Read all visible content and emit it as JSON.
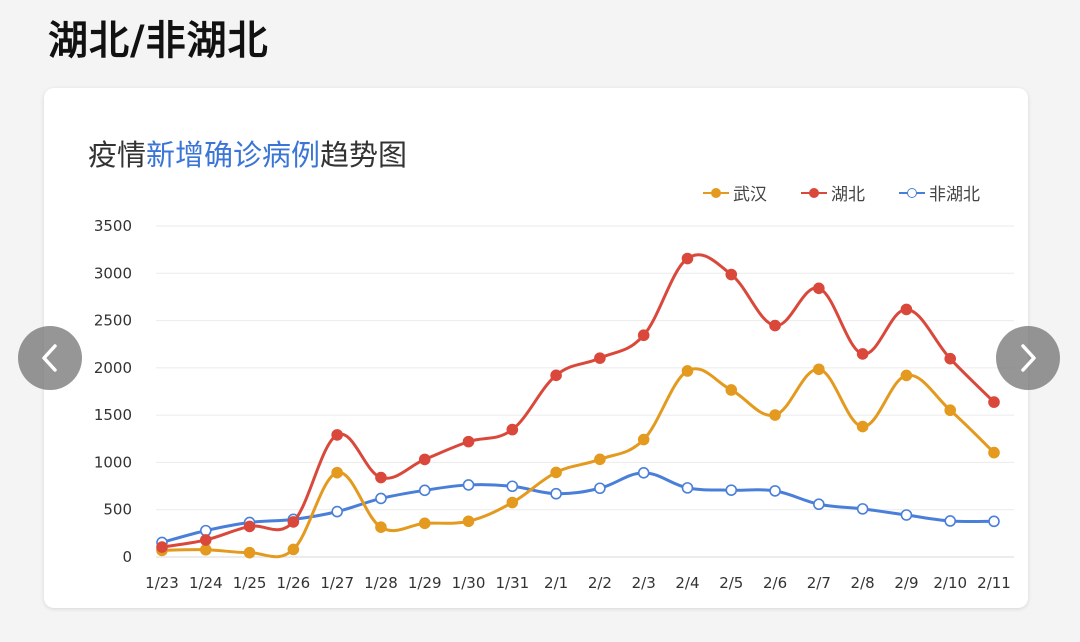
{
  "page": {
    "heading": "湖北/非湖北"
  },
  "chart_data": {
    "type": "line",
    "title_parts": [
      {
        "text": "疫情",
        "highlight": false
      },
      {
        "text": "新增确诊病例",
        "highlight": true
      },
      {
        "text": "趋势图",
        "highlight": false
      }
    ],
    "categories": [
      "1/23",
      "1/24",
      "1/25",
      "1/26",
      "1/27",
      "1/28",
      "1/29",
      "1/30",
      "1/31",
      "2/1",
      "2/2",
      "2/3",
      "2/4",
      "2/5",
      "2/6",
      "2/7",
      "2/8",
      "2/9",
      "2/10",
      "2/11"
    ],
    "ylim": [
      0,
      3500
    ],
    "yticks": [
      0,
      500,
      1000,
      1500,
      2000,
      2500,
      3000,
      3500
    ],
    "grid": true,
    "legend_position": "top-right",
    "series": [
      {
        "name": "武汉",
        "color": "#e39a1f",
        "fill": "#e39a1f",
        "values": [
          70,
          77,
          46,
          80,
          892,
          315,
          356,
          378,
          576,
          894,
          1033,
          1242,
          1967,
          1766,
          1501,
          1985,
          1379,
          1920,
          1552,
          1104
        ]
      },
      {
        "name": "湖北",
        "color": "#d9483b",
        "fill": "#d9483b",
        "values": [
          105,
          180,
          323,
          371,
          1291,
          840,
          1032,
          1220,
          1347,
          1921,
          2103,
          2345,
          3156,
          2987,
          2447,
          2841,
          2147,
          2618,
          2097,
          1638
        ]
      },
      {
        "name": "非湖北",
        "color": "#4a7fd9",
        "fill": "#ffffff",
        "values": [
          154,
          279,
          365,
          398,
          480,
          619,
          705,
          762,
          748,
          669,
          727,
          890,
          731,
          707,
          699,
          558,
          509,
          444,
          381,
          377
        ]
      }
    ]
  }
}
